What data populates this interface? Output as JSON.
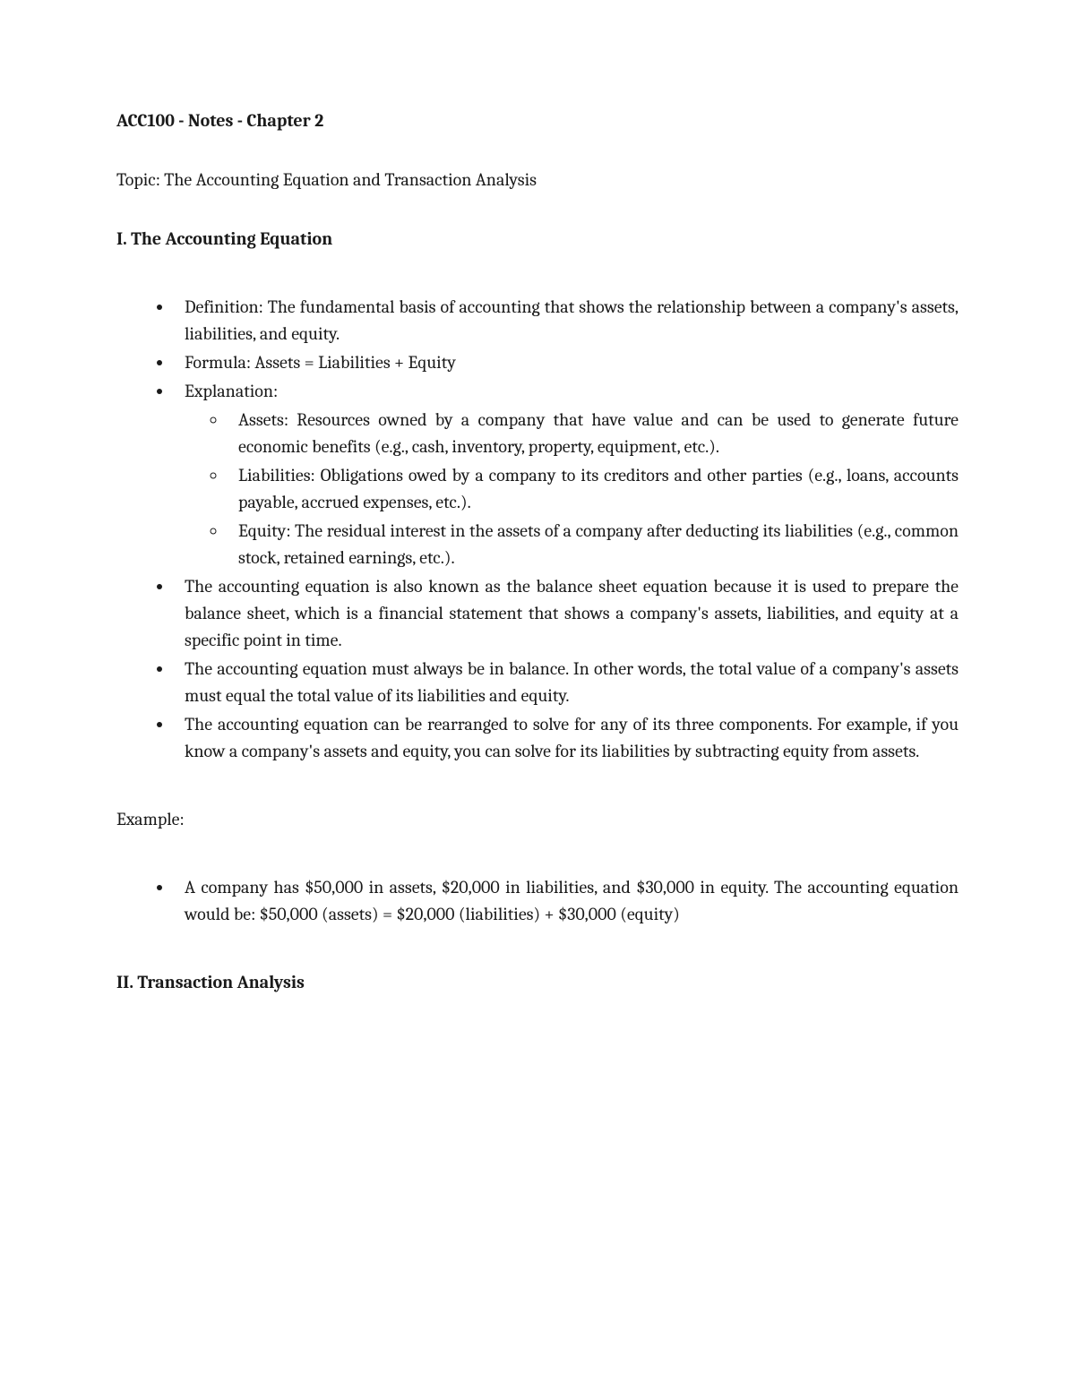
{
  "title": "ACC100 - Notes - Chapter 2",
  "topic": "Topic: The Accounting Equation and Transaction Analysis",
  "section1": {
    "heading": "I. The Accounting Equation",
    "bullets": {
      "b1": "Definition: The fundamental basis of accounting that shows the relationship between a company's assets, liabilities, and equity.",
      "b2": "Formula: Assets = Liabilities + Equity",
      "b3": "Explanation:",
      "b3_sub": {
        "s1": "Assets: Resources owned by a company that have value and can be used to generate future economic benefits (e.g., cash, inventory, property, equipment, etc.).",
        "s2": "Liabilities: Obligations owed by a company to its creditors and other parties (e.g., loans, accounts payable, accrued expenses, etc.).",
        "s3": "Equity: The residual interest in the assets of a company after deducting its liabilities (e.g., common stock, retained earnings, etc.)."
      },
      "b4": "The accounting equation is also known as the balance sheet equation because it is used to prepare the balance sheet, which is a financial statement that shows a company's assets, liabilities, and equity at a specific point in time.",
      "b5": "The accounting equation must always be in balance. In other words, the total value of a company's assets must equal the total value of its liabilities and equity.",
      "b6": "The accounting equation can be rearranged to solve for any of its three components. For example, if you know a company's assets and equity, you can solve for its liabilities by subtracting equity from assets."
    }
  },
  "example": {
    "heading": "Example:",
    "bullet": "A company has $50,000 in assets, $20,000 in liabilities, and $30,000 in equity. The accounting equation would be: $50,000 (assets) = $20,000 (liabilities) + $30,000 (equity)"
  },
  "section2": {
    "heading": "II. Transaction Analysis"
  }
}
